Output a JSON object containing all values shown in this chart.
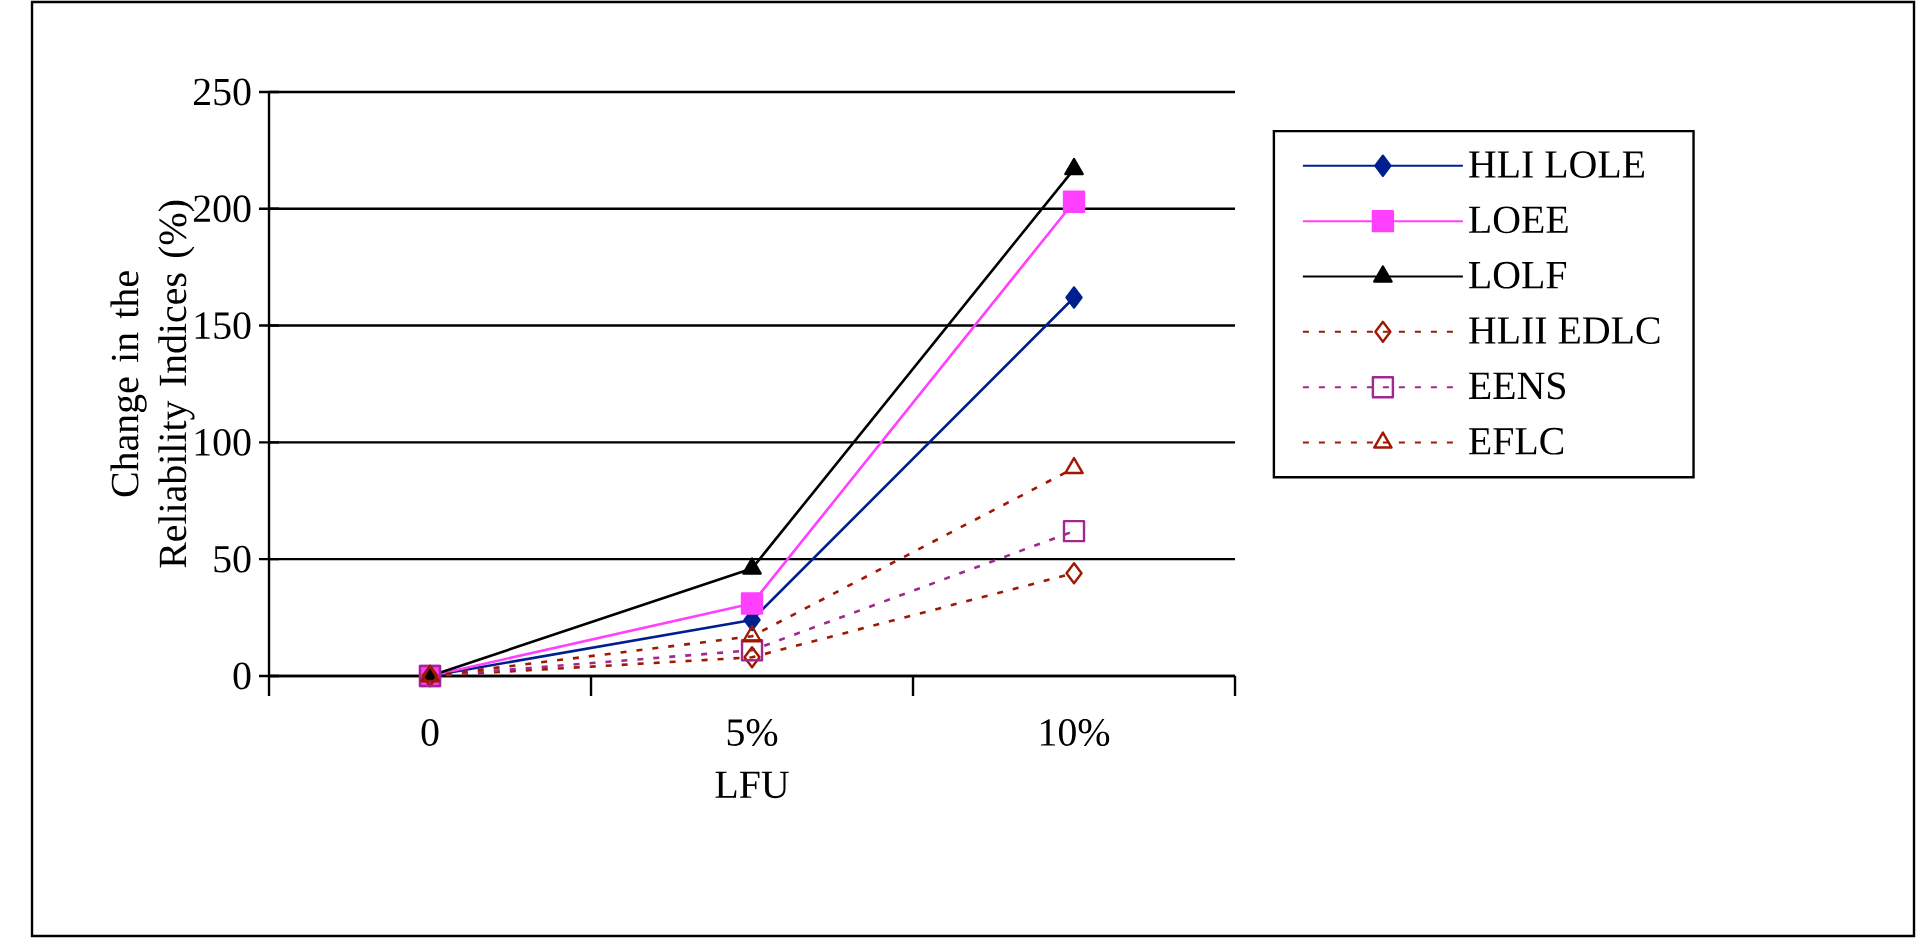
{
  "chart_data": {
    "type": "line",
    "xlabel": "LFU",
    "ylabel": "Change in the Reliability Indices (%)",
    "categories": [
      "0",
      "5%",
      "10%"
    ],
    "series": [
      {
        "name": "HLI LOLE",
        "color": "#001f8f",
        "values": [
          0,
          24,
          162
        ],
        "marker": "diamond",
        "line_style": "solid"
      },
      {
        "name": "LOEE",
        "color": "#ff40ff",
        "values": [
          0,
          31,
          203
        ],
        "marker": "square",
        "line_style": "solid"
      },
      {
        "name": "LOLF",
        "color": "#000000",
        "values": [
          0,
          46,
          217
        ],
        "marker": "triangle",
        "line_style": "solid"
      },
      {
        "name": "HLII EDLC",
        "color": "#a01800",
        "values": [
          0,
          8,
          44
        ],
        "marker": "diamond",
        "line_style": "dashed"
      },
      {
        "name": "EENS",
        "color": "#a02890",
        "values": [
          0,
          11,
          62
        ],
        "marker": "square",
        "line_style": "dashed"
      },
      {
        "name": "EFLC",
        "color": "#a01800",
        "values": [
          0,
          17,
          89
        ],
        "marker": "triangle",
        "line_style": "dashed"
      }
    ],
    "ylim": [
      0,
      250
    ],
    "yticks": [
      0,
      50,
      100,
      150,
      200,
      250
    ],
    "grid": "y",
    "legend": "right"
  }
}
